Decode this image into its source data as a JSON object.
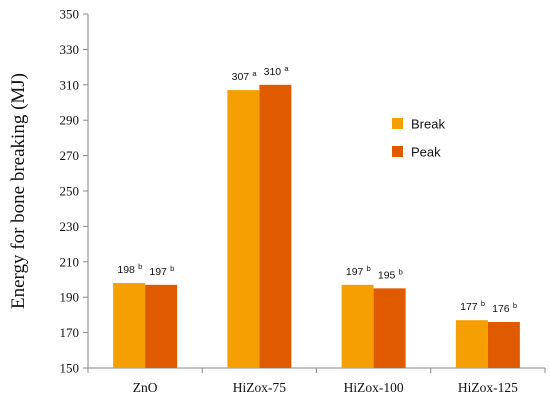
{
  "chart_data": {
    "type": "bar",
    "categories": [
      "ZnO",
      "HiZox-75",
      "HiZox-100",
      "HiZox-125"
    ],
    "series": [
      {
        "name": "Break",
        "color": "#F5A000",
        "values": [
          198,
          307,
          197,
          177
        ],
        "labels": [
          "198",
          "307",
          "197",
          "177"
        ],
        "superscripts": [
          "b",
          "a",
          "b",
          "b"
        ]
      },
      {
        "name": "Peak",
        "color": "#E05A00",
        "values": [
          197,
          310,
          195,
          176
        ],
        "labels": [
          "197",
          "310",
          "195",
          "176"
        ],
        "superscripts": [
          "b",
          "a",
          "b",
          "b"
        ]
      }
    ],
    "ylabel": "Energy for bone breaking (MJ)",
    "xlabel": "",
    "ylim": [
      150,
      350
    ],
    "yticks": [
      150,
      170,
      190,
      210,
      230,
      250,
      270,
      290,
      310,
      330,
      350
    ],
    "grid": false,
    "legend": "right"
  }
}
